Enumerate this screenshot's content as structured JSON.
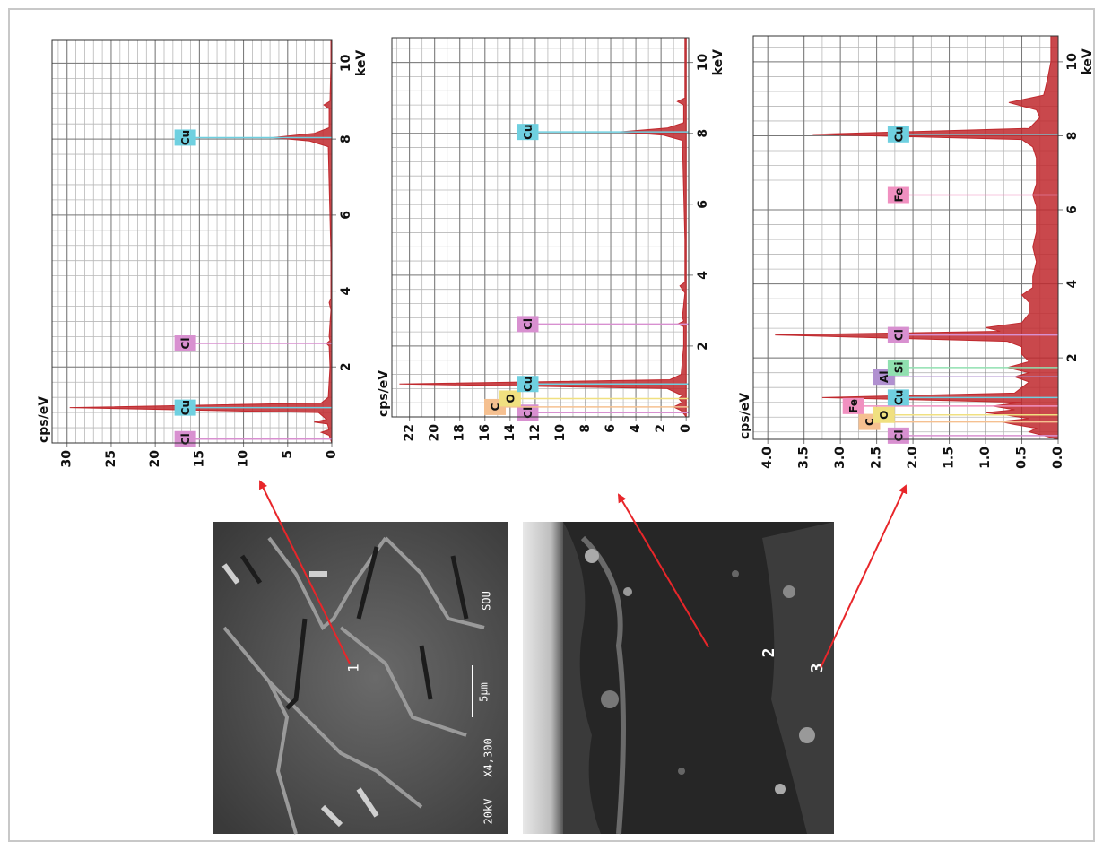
{
  "chart_data": [
    {
      "type": "area",
      "x_label": "keV",
      "y_label": "cps/eV",
      "color": "#c0282d",
      "grid": true,
      "xlim": [
        0,
        10.6
      ],
      "ylim": [
        0,
        31.7
      ],
      "xticks": [
        2,
        4,
        6,
        8,
        10
      ],
      "yticks": [
        0,
        5,
        10,
        15,
        20,
        25,
        30
      ],
      "xgrid_step": 0.4,
      "ygrid_step": 1,
      "x": [
        0,
        0.2,
        0.28,
        0.35,
        0.5,
        0.55,
        0.62,
        0.8,
        0.93,
        1.05,
        1.2,
        2.0,
        2.55,
        2.62,
        2.7,
        2.8,
        3.5,
        3.7,
        3.8,
        5,
        7.8,
        7.95,
        8.04,
        8.15,
        8.3,
        8.8,
        8.9,
        9.0,
        10,
        10.6
      ],
      "values": [
        0,
        0.3,
        1.2,
        0.3,
        0.5,
        2.0,
        0.6,
        1.5,
        29.7,
        1.2,
        0.4,
        0.2,
        0.3,
        0.6,
        0.2,
        0.3,
        0.1,
        0.3,
        0.1,
        0.1,
        0.4,
        2.5,
        6.7,
        2,
        0.3,
        0.3,
        0.9,
        0.2,
        0.1,
        0.1
      ],
      "annotations": [
        {
          "label": "Cl",
          "x": 0.1,
          "y": 16.6,
          "color": "#d890d0"
        },
        {
          "label": "Cu",
          "x": 0.93,
          "y": 16.6,
          "color": "#6fd0e0"
        },
        {
          "label": "Cl",
          "x": 2.62,
          "y": 16.6,
          "color": "#d890d0"
        },
        {
          "label": "Cu",
          "x": 8.04,
          "y": 16.6,
          "color": "#6fd0e0"
        }
      ]
    },
    {
      "type": "area",
      "x_label": "keV",
      "y_label": "cps/eV",
      "color": "#c0282d",
      "grid": true,
      "xlim": [
        0,
        10.7
      ],
      "ylim": [
        -0.2,
        23.4
      ],
      "xticks": [
        2,
        4,
        6,
        8,
        10
      ],
      "yticks": [
        0,
        2,
        4,
        6,
        8,
        10,
        12,
        14,
        16,
        18,
        20,
        22
      ],
      "xgrid_step": 0.4,
      "ygrid_step": 1,
      "x": [
        0,
        0.18,
        0.28,
        0.4,
        0.52,
        0.6,
        0.8,
        0.93,
        1.05,
        1.2,
        2.0,
        2.55,
        2.62,
        2.7,
        2.82,
        3.5,
        3.7,
        3.8,
        5,
        7.8,
        7.95,
        8.04,
        8.15,
        8.3,
        8.8,
        8.9,
        9.0,
        10,
        10.7
      ],
      "values": [
        0,
        0.4,
        1.0,
        0.3,
        0.6,
        0.3,
        1.5,
        22.8,
        1.3,
        0.4,
        0.2,
        0.2,
        0.7,
        0.2,
        0.3,
        0.1,
        0.5,
        0.1,
        0.1,
        0.3,
        1.8,
        5.3,
        1.5,
        0.2,
        0.2,
        0.7,
        0.1,
        0.1,
        0.1
      ],
      "annotations": [
        {
          "label": "Cl",
          "x": 0.12,
          "y": 12.6,
          "color": "#d890d0"
        },
        {
          "label": "C",
          "x": 0.28,
          "y": 15.2,
          "color": "#f5c090"
        },
        {
          "label": "O",
          "x": 0.52,
          "y": 14,
          "color": "#f0e080"
        },
        {
          "label": "Cu",
          "x": 0.93,
          "y": 12.6,
          "color": "#6fd0e0"
        },
        {
          "label": "Cl",
          "x": 2.62,
          "y": 12.6,
          "color": "#d890d0"
        },
        {
          "label": "Cu",
          "x": 8.04,
          "y": 12.6,
          "color": "#6fd0e0"
        }
      ]
    },
    {
      "type": "area",
      "x_label": "keV",
      "y_label": "cps/eV",
      "color": "#c0282d",
      "grid": true,
      "xlim": [
        -0.2,
        10.7
      ],
      "ylim": [
        0,
        4.2
      ],
      "xticks": [
        2,
        4,
        6,
        8,
        10
      ],
      "yticks": [
        {
          "value": 0,
          "label": "0.0"
        },
        0.5,
        {
          "value": 1,
          "label": "1.0"
        },
        1.5,
        {
          "value": 2,
          "label": "2.0"
        },
        2.5,
        {
          "value": 3,
          "label": "3.0"
        },
        3.5,
        {
          "value": 4,
          "label": "4.0"
        }
      ],
      "xgrid_step": 0.4,
      "ygrid_step": 0.25,
      "x": [
        -0.2,
        0,
        0.1,
        0.2,
        0.28,
        0.36,
        0.45,
        0.52,
        0.6,
        0.7,
        0.8,
        0.93,
        1.05,
        1.2,
        1.35,
        1.49,
        1.6,
        1.74,
        1.9,
        2.1,
        2.3,
        2.45,
        2.62,
        2.72,
        2.82,
        2.95,
        3.2,
        3.5,
        3.7,
        3.9,
        4.2,
        4.6,
        5.0,
        5.4,
        5.8,
        6.1,
        6.4,
        6.7,
        7.0,
        7.4,
        7.7,
        7.9,
        8.04,
        8.2,
        8.5,
        8.7,
        8.9,
        9.1,
        9.5,
        10,
        10.7
      ],
      "values": [
        0,
        0.4,
        0.3,
        0.6,
        0.8,
        0.4,
        0.7,
        1.0,
        0.6,
        0.9,
        0.5,
        3.25,
        0.6,
        0.5,
        0.4,
        0.6,
        0.4,
        0.7,
        0.4,
        0.5,
        0.5,
        0.7,
        3.9,
        0.8,
        1.0,
        0.5,
        0.4,
        0.4,
        0.5,
        0.35,
        0.35,
        0.3,
        0.35,
        0.3,
        0.3,
        0.3,
        0.35,
        0.3,
        0.3,
        0.3,
        0.35,
        0.5,
        3.38,
        0.4,
        0.25,
        0.3,
        0.68,
        0.2,
        0.15,
        0.1,
        0.1
      ],
      "annotations": [
        {
          "label": "Cl",
          "x": -0.1,
          "y": 2.2,
          "color": "#d890d0"
        },
        {
          "label": "C",
          "x": 0.27,
          "y": 2.6,
          "color": "#f5c090"
        },
        {
          "label": "O",
          "x": 0.46,
          "y": 2.4,
          "color": "#f0e080"
        },
        {
          "label": "Fe",
          "x": 0.7,
          "y": 2.82,
          "color": "#f090c0"
        },
        {
          "label": "Cu",
          "x": 0.93,
          "y": 2.2,
          "color": "#6fd0e0"
        },
        {
          "label": "Al",
          "x": 1.49,
          "y": 2.4,
          "color": "#b090d0"
        },
        {
          "label": "Si",
          "x": 1.74,
          "y": 2.2,
          "color": "#90e0b0"
        },
        {
          "label": "Cl",
          "x": 2.62,
          "y": 2.2,
          "color": "#d890d0"
        },
        {
          "label": "Fe",
          "x": 6.4,
          "y": 2.2,
          "color": "#f090c0"
        },
        {
          "label": "Cu",
          "x": 8.04,
          "y": 2.2,
          "color": "#6fd0e0"
        }
      ]
    }
  ],
  "images": [
    {
      "labels": [
        "1",
        "20kV",
        "X4,300",
        "5µm",
        "SOU"
      ]
    },
    {
      "labels": [
        "2",
        "3"
      ]
    }
  ]
}
